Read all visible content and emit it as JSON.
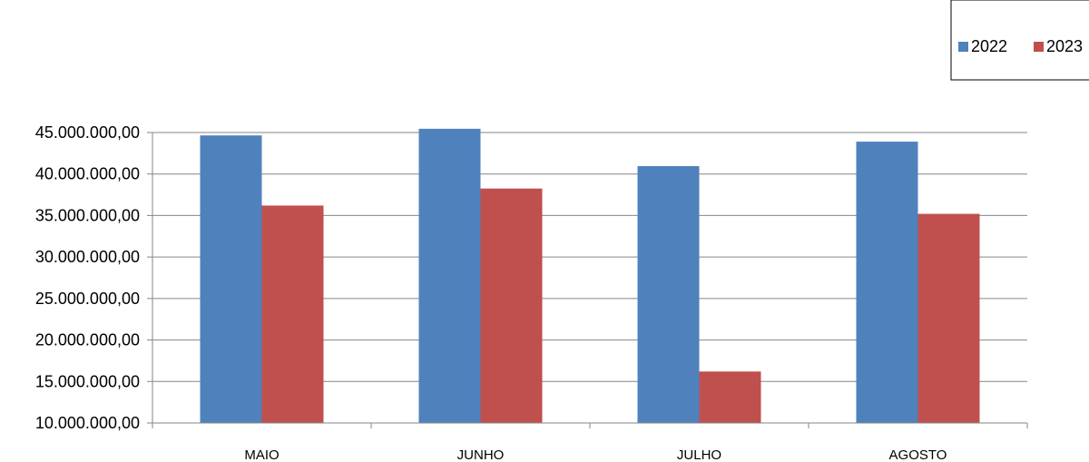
{
  "chart_data": {
    "type": "bar",
    "categories": [
      "MAIO",
      "JUNHO",
      "JULHO",
      "AGOSTO"
    ],
    "series": [
      {
        "name": "2022",
        "color": "#4F81BD",
        "values": [
          44650000,
          45450000,
          40950000,
          43900000
        ]
      },
      {
        "name": "2023",
        "color": "#C0504D",
        "values": [
          36200000,
          38250000,
          16200000,
          35200000
        ]
      }
    ],
    "yticks": [
      "10.000.000,00",
      "15.000.000,00",
      "20.000.000,00",
      "25.000.000,00",
      "30.000.000,00",
      "35.000.000,00",
      "40.000.000,00",
      "45.000.000,00"
    ],
    "ylim": [
      10000000,
      45000000
    ],
    "grid": true,
    "legend_position": "top-right",
    "title": "",
    "xlabel": "",
    "ylabel": ""
  }
}
